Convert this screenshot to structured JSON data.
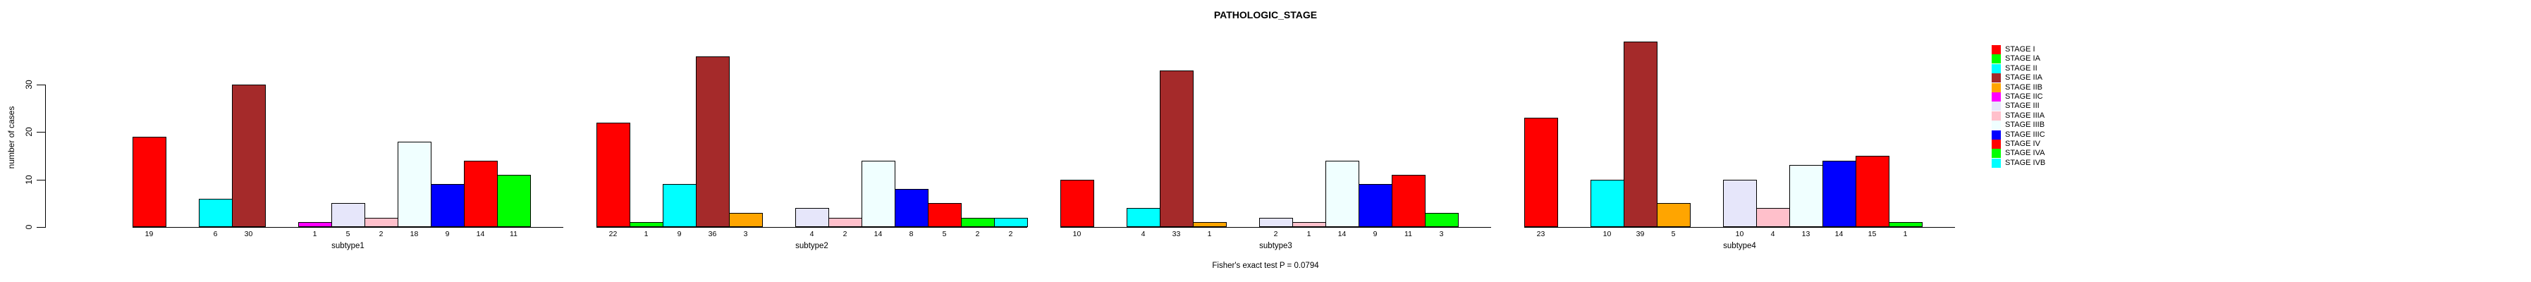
{
  "title": "PATHOLOGIC_STAGE",
  "footer": "Fisher's exact test P = 0.0794",
  "chart_data": {
    "type": "bar",
    "title": "PATHOLOGIC_STAGE",
    "xlabel": "",
    "ylabel": "number of cases",
    "ylim": [
      0,
      30
    ],
    "yticks": [
      0,
      10,
      20,
      30
    ],
    "grid": false,
    "legend_position": "right",
    "annotation": "Fisher's exact test P = 0.0794",
    "stages": [
      {
        "label": "STAGE I",
        "color": "#FF0000"
      },
      {
        "label": "STAGE IA",
        "color": "#00FF00"
      },
      {
        "label": "STAGE II",
        "color": "#00FFFF"
      },
      {
        "label": "STAGE IIA",
        "color": "#A52A2A"
      },
      {
        "label": "STAGE IIB",
        "color": "#FFA500"
      },
      {
        "label": "STAGE IIC",
        "color": "#FF00FF"
      },
      {
        "label": "STAGE III",
        "color": "#E6E6FA"
      },
      {
        "label": "STAGE IIIA",
        "color": "#FFC0CB"
      },
      {
        "label": "STAGE IIIB",
        "color": "#F0FFFF"
      },
      {
        "label": "STAGE IIIC",
        "color": "#0000FF"
      },
      {
        "label": "STAGE IV",
        "color": "#FF0000"
      },
      {
        "label": "STAGE IVA",
        "color": "#00FF00"
      },
      {
        "label": "STAGE IVB",
        "color": "#00FFFF"
      }
    ],
    "groups": [
      {
        "label": "subtype1",
        "values": [
          19,
          0,
          6,
          30,
          0,
          1,
          5,
          2,
          18,
          9,
          14,
          11,
          0
        ]
      },
      {
        "label": "subtype2",
        "values": [
          22,
          1,
          9,
          36,
          3,
          0,
          4,
          2,
          14,
          8,
          5,
          2,
          2
        ]
      },
      {
        "label": "subtype3",
        "values": [
          10,
          0,
          4,
          33,
          1,
          0,
          2,
          1,
          14,
          9,
          11,
          3,
          0
        ]
      },
      {
        "label": "subtype4",
        "values": [
          23,
          0,
          10,
          39,
          5,
          0,
          10,
          4,
          13,
          14,
          15,
          1,
          0
        ]
      }
    ]
  }
}
